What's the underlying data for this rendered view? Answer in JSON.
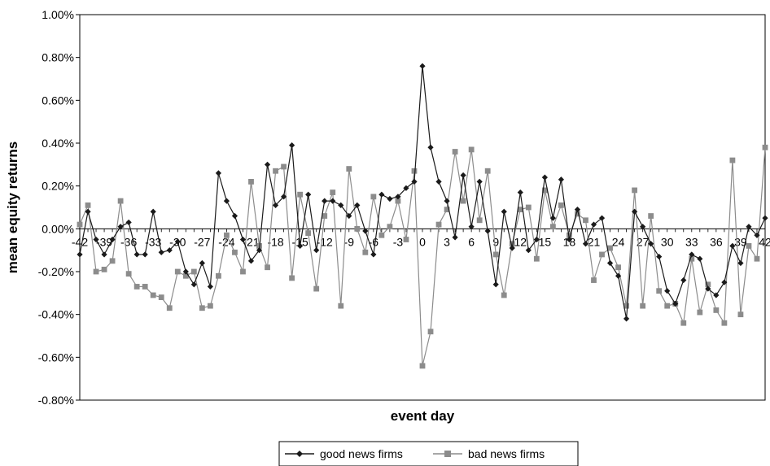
{
  "chart_data": {
    "type": "line",
    "xlabel": "event day",
    "ylabel": "mean equity returns",
    "x": [
      -42,
      -41,
      -40,
      -39,
      -38,
      -37,
      -36,
      -35,
      -34,
      -33,
      -32,
      -31,
      -30,
      -29,
      -28,
      -27,
      -26,
      -25,
      -24,
      -23,
      -22,
      -21,
      -20,
      -19,
      -18,
      -17,
      -16,
      -15,
      -14,
      -13,
      -12,
      -11,
      -10,
      -9,
      -8,
      -7,
      -6,
      -5,
      -4,
      -3,
      -2,
      -1,
      0,
      1,
      2,
      3,
      4,
      5,
      6,
      7,
      8,
      9,
      10,
      11,
      12,
      13,
      14,
      15,
      16,
      17,
      18,
      19,
      20,
      21,
      22,
      23,
      24,
      25,
      26,
      27,
      28,
      29,
      30,
      31,
      32,
      33,
      34,
      35,
      36,
      37,
      38,
      39,
      40,
      41,
      42
    ],
    "x_ticks": [
      -42,
      -39,
      -36,
      -33,
      -30,
      -27,
      -24,
      -21,
      -18,
      -15,
      -12,
      -9,
      -6,
      -3,
      0,
      3,
      6,
      9,
      12,
      15,
      18,
      21,
      24,
      27,
      30,
      33,
      36,
      39,
      42
    ],
    "x_tick_labels": [
      "-42",
      "-39",
      "-36",
      "-33",
      "-30",
      "-27",
      "-24",
      "-21",
      "-18",
      "-15",
      "-12",
      "-9",
      "-6",
      "-3",
      "0",
      "3",
      "6",
      "9",
      "12",
      "15",
      "18",
      "21",
      "24",
      "27",
      "30",
      "33",
      "36",
      "39",
      "42"
    ],
    "xlim": [
      -42,
      42
    ],
    "ylim": [
      -0.8,
      1.0
    ],
    "y_ticks": [
      -0.8,
      -0.6,
      -0.4,
      -0.2,
      0,
      0.2,
      0.4,
      0.6,
      0.8,
      1.0
    ],
    "y_tick_labels": [
      "-0.80%",
      "-0.60%",
      "-0.40%",
      "-0.20%",
      "0.00%",
      "0.20%",
      "0.40%",
      "0.60%",
      "0.80%",
      "1.00%"
    ],
    "grid": false,
    "legend_position": "bottom",
    "series": [
      {
        "name": "good news firms",
        "color": "#1a1a1a",
        "marker": "diamond",
        "values": [
          -0.12,
          0.08,
          -0.05,
          -0.12,
          -0.05,
          0.01,
          0.03,
          -0.12,
          -0.12,
          0.08,
          -0.11,
          -0.1,
          -0.06,
          -0.2,
          -0.26,
          -0.16,
          -0.27,
          0.26,
          0.13,
          0.06,
          -0.05,
          -0.15,
          -0.1,
          0.3,
          0.11,
          0.15,
          0.39,
          -0.08,
          0.16,
          -0.1,
          0.13,
          0.13,
          0.11,
          0.06,
          0.11,
          -0.01,
          -0.12,
          0.16,
          0.14,
          0.15,
          0.19,
          0.22,
          0.76,
          0.38,
          0.22,
          0.13,
          -0.04,
          0.25,
          0.01,
          0.22,
          -0.01,
          -0.26,
          0.08,
          -0.09,
          0.17,
          -0.1,
          -0.05,
          0.24,
          0.05,
          0.23,
          -0.05,
          0.09,
          -0.07,
          0.02,
          0.05,
          -0.16,
          -0.22,
          -0.42,
          0.08,
          0.01,
          -0.07,
          -0.13,
          -0.29,
          -0.35,
          -0.24,
          -0.12,
          -0.14,
          -0.28,
          -0.31,
          -0.25,
          -0.08,
          -0.16,
          0.01,
          -0.03,
          0.05
        ]
      },
      {
        "name": "bad news firms",
        "color": "#8c8c8c",
        "marker": "square",
        "values": [
          0.02,
          0.11,
          -0.2,
          -0.19,
          -0.15,
          0.13,
          -0.21,
          -0.27,
          -0.27,
          -0.31,
          -0.32,
          -0.37,
          -0.2,
          -0.22,
          -0.2,
          -0.37,
          -0.36,
          -0.22,
          -0.03,
          -0.11,
          -0.2,
          0.22,
          -0.08,
          -0.18,
          0.27,
          0.29,
          -0.23,
          0.16,
          -0.02,
          -0.28,
          0.06,
          0.17,
          -0.36,
          0.28,
          0.0,
          -0.11,
          0.15,
          -0.03,
          0.01,
          0.13,
          -0.05,
          0.27,
          -0.64,
          -0.48,
          0.02,
          0.09,
          0.36,
          0.13,
          0.37,
          0.04,
          0.27,
          -0.12,
          -0.31,
          -0.07,
          0.09,
          0.1,
          -0.14,
          0.18,
          0.01,
          0.11,
          -0.03,
          0.07,
          0.04,
          -0.24,
          -0.12,
          -0.09,
          -0.18,
          -0.36,
          0.18,
          -0.36,
          0.06,
          -0.29,
          -0.36,
          -0.35,
          -0.44,
          -0.14,
          -0.39,
          -0.26,
          -0.38,
          -0.44,
          0.32,
          -0.4,
          -0.08,
          -0.14,
          0.38
        ]
      }
    ]
  }
}
